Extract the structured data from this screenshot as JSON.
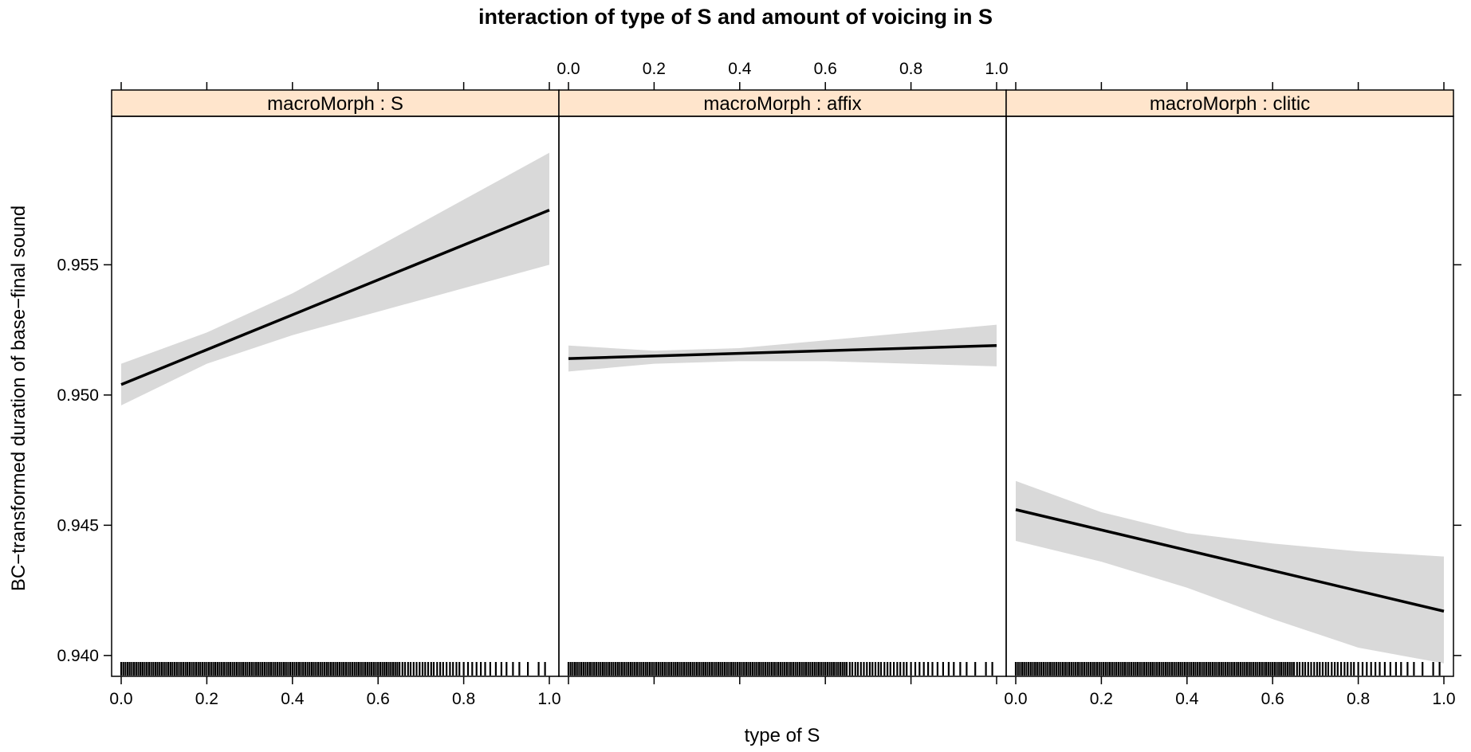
{
  "chart_data": {
    "type": "line",
    "title": "interaction of type of S and amount of voicing in S",
    "xlabel": "type of S",
    "ylabel": "BC−transformed duration of base−final sound",
    "xlim": [
      0,
      1
    ],
    "ylim": [
      0.9392,
      0.9607
    ],
    "x_ticks": [
      "0.0",
      "0.2",
      "0.4",
      "0.6",
      "0.8",
      "1.0"
    ],
    "y_ticks": [
      "0.940",
      "0.945",
      "0.950",
      "0.955"
    ],
    "grid": false,
    "strip_color": "#ffe5cc",
    "band_color": "#d9d9d9",
    "panels": [
      {
        "strip": "macroMorph : S",
        "fit": {
          "x": [
            0.0,
            1.0
          ],
          "y": [
            0.9504,
            0.9571
          ]
        },
        "ci_lower": {
          "x": [
            0.0,
            0.2,
            0.4,
            0.6,
            0.8,
            1.0
          ],
          "y": [
            0.9496,
            0.9512,
            0.9523,
            0.9532,
            0.9541,
            0.955
          ]
        },
        "ci_upper": {
          "x": [
            0.0,
            0.2,
            0.4,
            0.6,
            0.8,
            1.0
          ],
          "y": [
            0.9512,
            0.9524,
            0.9539,
            0.9557,
            0.9575,
            0.9593
          ]
        }
      },
      {
        "strip": "macroMorph : affix",
        "fit": {
          "x": [
            0.0,
            1.0
          ],
          "y": [
            0.9514,
            0.9519
          ]
        },
        "ci_lower": {
          "x": [
            0.0,
            0.2,
            0.4,
            0.6,
            0.8,
            1.0
          ],
          "y": [
            0.9509,
            0.9512,
            0.9513,
            0.9513,
            0.9512,
            0.9511
          ]
        },
        "ci_upper": {
          "x": [
            0.0,
            0.2,
            0.4,
            0.6,
            0.8,
            1.0
          ],
          "y": [
            0.9519,
            0.9517,
            0.9518,
            0.9521,
            0.9524,
            0.9527
          ]
        }
      },
      {
        "strip": "macroMorph : clitic",
        "fit": {
          "x": [
            0.0,
            1.0
          ],
          "y": [
            0.9456,
            0.9417
          ]
        },
        "ci_lower": {
          "x": [
            0.0,
            0.2,
            0.4,
            0.6,
            0.8,
            1.0
          ],
          "y": [
            0.9444,
            0.9436,
            0.9426,
            0.9414,
            0.9403,
            0.9397
          ]
        },
        "ci_upper": {
          "x": [
            0.0,
            0.2,
            0.4,
            0.6,
            0.8,
            1.0
          ],
          "y": [
            0.9467,
            0.9455,
            0.9447,
            0.9443,
            0.944,
            0.9438
          ]
        }
      }
    ],
    "rug_x": [
      0.0,
      0.005,
      0.01,
      0.015,
      0.02,
      0.025,
      0.03,
      0.035,
      0.04,
      0.045,
      0.05,
      0.055,
      0.06,
      0.065,
      0.07,
      0.075,
      0.08,
      0.085,
      0.09,
      0.095,
      0.1,
      0.105,
      0.11,
      0.115,
      0.12,
      0.125,
      0.13,
      0.135,
      0.14,
      0.145,
      0.15,
      0.155,
      0.16,
      0.165,
      0.17,
      0.175,
      0.18,
      0.185,
      0.19,
      0.195,
      0.2,
      0.205,
      0.21,
      0.215,
      0.22,
      0.225,
      0.23,
      0.235,
      0.24,
      0.245,
      0.25,
      0.255,
      0.26,
      0.265,
      0.27,
      0.275,
      0.28,
      0.285,
      0.29,
      0.295,
      0.3,
      0.305,
      0.31,
      0.315,
      0.32,
      0.325,
      0.33,
      0.335,
      0.34,
      0.345,
      0.35,
      0.355,
      0.36,
      0.365,
      0.37,
      0.375,
      0.38,
      0.385,
      0.39,
      0.395,
      0.4,
      0.405,
      0.41,
      0.415,
      0.42,
      0.425,
      0.43,
      0.435,
      0.44,
      0.445,
      0.45,
      0.455,
      0.46,
      0.465,
      0.47,
      0.475,
      0.48,
      0.485,
      0.49,
      0.495,
      0.5,
      0.505,
      0.51,
      0.515,
      0.52,
      0.525,
      0.53,
      0.535,
      0.54,
      0.545,
      0.55,
      0.555,
      0.56,
      0.565,
      0.57,
      0.575,
      0.58,
      0.585,
      0.59,
      0.595,
      0.6,
      0.605,
      0.61,
      0.615,
      0.62,
      0.625,
      0.63,
      0.635,
      0.64,
      0.645,
      0.65,
      0.657,
      0.663,
      0.67,
      0.676,
      0.683,
      0.69,
      0.697,
      0.704,
      0.71,
      0.717,
      0.724,
      0.73,
      0.738,
      0.745,
      0.752,
      0.76,
      0.768,
      0.775,
      0.783,
      0.79,
      0.8,
      0.81,
      0.82,
      0.83,
      0.84,
      0.85,
      0.862,
      0.875,
      0.888,
      0.9,
      0.915,
      0.93,
      0.95,
      0.975,
      0.99
    ]
  }
}
